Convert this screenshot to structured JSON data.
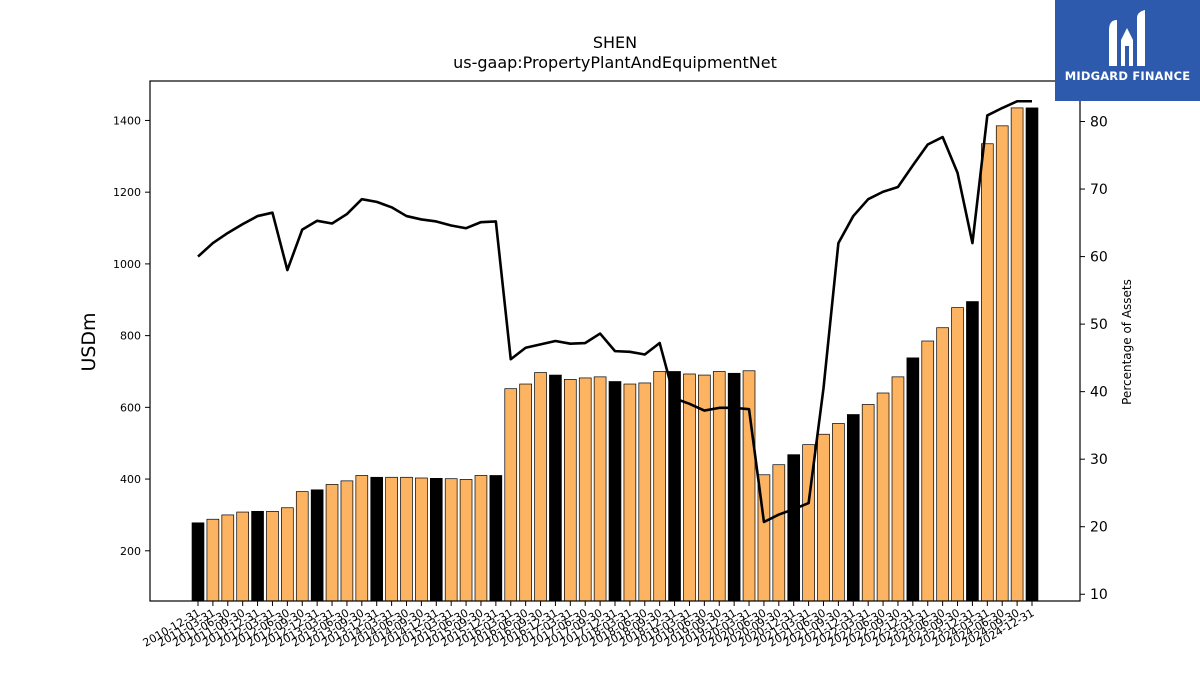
{
  "chart_data": {
    "type": "bar",
    "title": "SHEN",
    "subtitle": "us-gaap:PropertyPlantAndEquipmentNet",
    "ylabel": "USDm",
    "y2label": "Percentage of Assets",
    "ylim": [
      60,
      1510
    ],
    "y2lim": [
      9,
      86
    ],
    "yticks": [
      200,
      400,
      600,
      800,
      1000,
      1200,
      1400
    ],
    "y2ticks": [
      10,
      20,
      30,
      40,
      50,
      60,
      70,
      80
    ],
    "colors": {
      "bar_annual": "#000000",
      "bar_quarter": "#fdb462",
      "line": "#000000"
    },
    "categories": [
      "2010-12-31",
      "2011-03-31",
      "2011-06-30",
      "2011-09-30",
      "2011-12-31",
      "2012-03-31",
      "2012-06-30",
      "2012-09-30",
      "2012-12-31",
      "2013-03-31",
      "2013-06-30",
      "2013-09-30",
      "2013-12-31",
      "2014-03-31",
      "2014-06-30",
      "2014-09-30",
      "2014-12-31",
      "2015-03-31",
      "2015-06-30",
      "2015-09-30",
      "2015-12-31",
      "2016-03-31",
      "2016-06-30",
      "2016-09-30",
      "2016-12-31",
      "2017-03-31",
      "2017-06-30",
      "2017-09-30",
      "2017-12-31",
      "2018-03-31",
      "2018-06-30",
      "2018-09-30",
      "2018-12-31",
      "2019-03-31",
      "2019-06-30",
      "2019-09-30",
      "2019-12-31",
      "2020-03-31",
      "2020-06-30",
      "2020-09-30",
      "2020-12-31",
      "2021-03-31",
      "2021-06-30",
      "2021-09-30",
      "2021-12-31",
      "2022-03-31",
      "2022-06-30",
      "2022-09-30",
      "2022-12-31",
      "2023-03-31",
      "2023-06-30",
      "2023-09-30",
      "2023-12-31",
      "2024-03-31",
      "2024-06-30",
      "2024-09-30",
      "2024-12-31"
    ],
    "series": [
      {
        "type": "bar",
        "values": [
          278,
          288,
          300,
          308,
          310,
          310,
          320,
          365,
          370,
          385,
          395,
          410,
          405,
          405,
          405,
          403,
          402,
          401,
          399,
          410,
          410,
          652,
          665,
          697,
          690,
          678,
          682,
          685,
          672,
          665,
          668,
          700,
          700,
          693,
          690,
          700,
          695,
          702,
          412,
          440,
          468,
          496,
          525,
          555,
          580,
          608,
          640,
          685,
          738,
          785,
          822,
          878,
          895,
          1335,
          1385,
          1435,
          1435
        ],
        "annual": [
          true,
          false,
          false,
          false,
          true,
          false,
          false,
          false,
          true,
          false,
          false,
          false,
          true,
          false,
          false,
          false,
          true,
          false,
          false,
          false,
          true,
          false,
          false,
          false,
          true,
          false,
          false,
          false,
          true,
          false,
          false,
          false,
          true,
          false,
          false,
          false,
          true,
          false,
          false,
          false,
          true,
          false,
          false,
          false,
          true,
          false,
          false,
          false,
          true,
          false,
          false,
          false,
          true,
          false,
          false,
          false,
          true
        ]
      },
      {
        "type": "line",
        "values": [
          60.0,
          62.0,
          63.5,
          64.8,
          66.0,
          66.5,
          58.0,
          64.0,
          65.3,
          64.9,
          66.3,
          68.5,
          68.1,
          67.3,
          66.0,
          65.5,
          65.2,
          64.6,
          64.2,
          65.1,
          65.2,
          44.8,
          46.5,
          47.0,
          47.5,
          47.1,
          47.2,
          48.6,
          46.0,
          45.9,
          45.5,
          47.2,
          39.0,
          38.2,
          37.2,
          37.6,
          37.6,
          37.4,
          20.7,
          21.8,
          22.6,
          23.5,
          40.5,
          62.0,
          66.0,
          68.5,
          69.6,
          70.3,
          73.5,
          76.6,
          77.7,
          72.4,
          62.0,
          80.9,
          82.0,
          83.0,
          83.0
        ]
      }
    ]
  },
  "logo": {
    "text": "MIDGARD FINANCE"
  }
}
